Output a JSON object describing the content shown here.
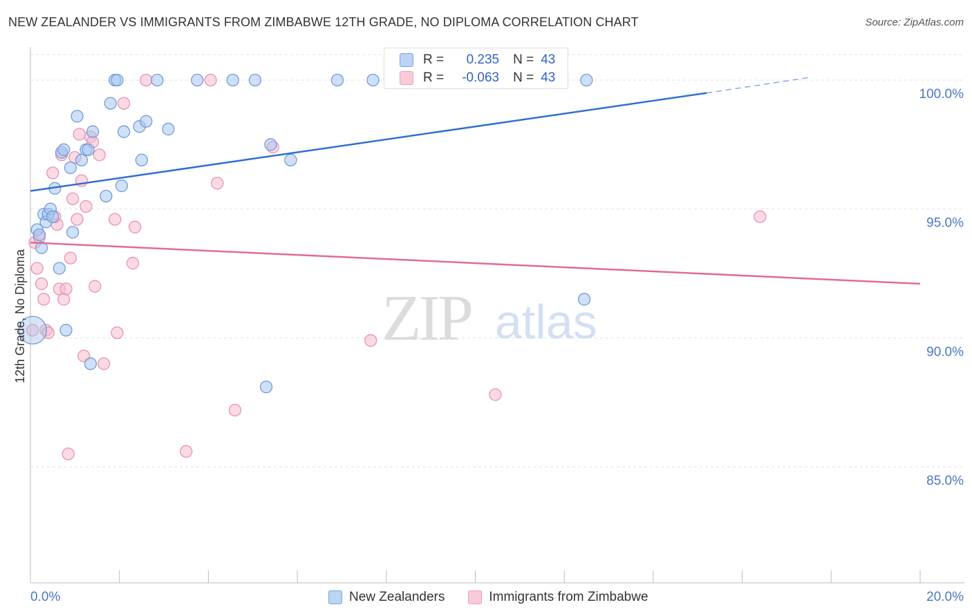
{
  "title": "NEW ZEALANDER VS IMMIGRANTS FROM ZIMBABWE 12TH GRADE, NO DIPLOMA CORRELATION CHART",
  "source": "Source: ZipAtlas.com",
  "watermark": {
    "zip": "ZIP",
    "atlas": "atlas"
  },
  "stats": {
    "rows": [
      {
        "r_label": "R =",
        "r_value": "0.235",
        "n_label": "N =",
        "n_value": "43"
      },
      {
        "r_label": "R =",
        "r_value": "-0.063",
        "n_label": "N =",
        "n_value": "43"
      }
    ]
  },
  "legend": {
    "items": [
      {
        "label": "New Zealanders"
      },
      {
        "label": "Immigrants from Zimbabwe"
      }
    ]
  },
  "colors": {
    "blue_fill": "#a9c6ee",
    "blue_stroke": "#6f9bdc",
    "blue_line": "#2f6fce",
    "pink_fill": "#f6bccd",
    "pink_stroke": "#e893ad",
    "pink_line": "#e06b95",
    "grid": "#e2e2e2",
    "tick_label": "#4a77c2"
  },
  "chart_data": {
    "type": "scatter",
    "title": "NEW ZEALANDER VS IMMIGRANTS FROM ZIMBABWE 12TH GRADE, NO DIPLOMA CORRELATION CHART",
    "xlabel": "",
    "ylabel": "12th Grade, No Diploma",
    "xlim": [
      0,
      20
    ],
    "ylim": [
      80.5,
      101.5
    ],
    "x_tick_labels": [
      "0.0%",
      "20.0%"
    ],
    "y_ticks": [
      85,
      90,
      95,
      100
    ],
    "y_tick_labels": [
      "85.0%",
      "90.0%",
      "95.0%",
      "100.0%"
    ],
    "grid": true,
    "legend_position": "bottom",
    "series": [
      {
        "name": "New Zealanders",
        "color": "#a9c6ee",
        "trend": {
          "x": [
            0,
            15.2
          ],
          "y": [
            95.7,
            99.5
          ],
          "dashed_to": [
            17.5,
            100.1
          ]
        },
        "points": [
          [
            0.15,
            94.2
          ],
          [
            0.2,
            94.0
          ],
          [
            0.25,
            93.5
          ],
          [
            0.3,
            94.8
          ],
          [
            0.35,
            94.5
          ],
          [
            0.4,
            94.8
          ],
          [
            0.45,
            95.0
          ],
          [
            0.5,
            94.7
          ],
          [
            0.55,
            95.8
          ],
          [
            0.65,
            92.7
          ],
          [
            0.7,
            97.2
          ],
          [
            0.75,
            97.3
          ],
          [
            0.8,
            90.3
          ],
          [
            0.9,
            96.6
          ],
          [
            0.95,
            94.1
          ],
          [
            1.05,
            98.6
          ],
          [
            1.15,
            96.9
          ],
          [
            1.25,
            97.3
          ],
          [
            1.3,
            97.3
          ],
          [
            1.35,
            89.0
          ],
          [
            1.4,
            98.0
          ],
          [
            1.7,
            95.5
          ],
          [
            1.8,
            99.1
          ],
          [
            1.9,
            100.0
          ],
          [
            1.95,
            100.0
          ],
          [
            2.05,
            95.9
          ],
          [
            2.1,
            98.0
          ],
          [
            2.45,
            98.2
          ],
          [
            2.5,
            96.9
          ],
          [
            2.6,
            98.4
          ],
          [
            2.85,
            100.0
          ],
          [
            3.1,
            98.1
          ],
          [
            3.75,
            100.0
          ],
          [
            4.55,
            100.0
          ],
          [
            5.05,
            100.0
          ],
          [
            5.3,
            88.1
          ],
          [
            5.4,
            97.5
          ],
          [
            5.85,
            96.9
          ],
          [
            6.9,
            100.0
          ],
          [
            7.7,
            100.0
          ],
          [
            12.45,
            91.5
          ],
          [
            12.5,
            100.0
          ],
          [
            0.05,
            90.3
          ]
        ]
      },
      {
        "name": "Immigrants from Zimbabwe",
        "color": "#f6bccd",
        "trend": {
          "x": [
            0,
            20
          ],
          "y": [
            93.7,
            92.1
          ]
        },
        "points": [
          [
            0.1,
            93.7
          ],
          [
            0.15,
            92.7
          ],
          [
            0.2,
            93.9
          ],
          [
            0.25,
            92.1
          ],
          [
            0.3,
            91.5
          ],
          [
            0.35,
            90.3
          ],
          [
            0.4,
            90.2
          ],
          [
            0.5,
            96.4
          ],
          [
            0.6,
            94.4
          ],
          [
            0.65,
            91.9
          ],
          [
            0.7,
            97.1
          ],
          [
            0.75,
            91.5
          ],
          [
            0.8,
            91.9
          ],
          [
            0.85,
            85.5
          ],
          [
            0.9,
            93.1
          ],
          [
            0.95,
            95.4
          ],
          [
            1.0,
            97.0
          ],
          [
            1.05,
            94.6
          ],
          [
            1.1,
            97.9
          ],
          [
            1.15,
            96.1
          ],
          [
            1.2,
            89.3
          ],
          [
            1.25,
            95.1
          ],
          [
            1.35,
            97.8
          ],
          [
            1.4,
            97.6
          ],
          [
            1.45,
            92.0
          ],
          [
            1.55,
            97.1
          ],
          [
            1.65,
            89.0
          ],
          [
            1.9,
            94.6
          ],
          [
            1.95,
            90.2
          ],
          [
            2.1,
            99.1
          ],
          [
            2.3,
            92.9
          ],
          [
            2.35,
            94.3
          ],
          [
            2.6,
            100.0
          ],
          [
            3.5,
            85.6
          ],
          [
            4.05,
            100.0
          ],
          [
            4.2,
            96.0
          ],
          [
            4.6,
            87.2
          ],
          [
            5.45,
            97.4
          ],
          [
            7.65,
            89.9
          ],
          [
            10.45,
            87.8
          ],
          [
            16.4,
            94.7
          ],
          [
            0.05,
            90.3
          ],
          [
            0.55,
            94.7
          ]
        ]
      }
    ]
  }
}
